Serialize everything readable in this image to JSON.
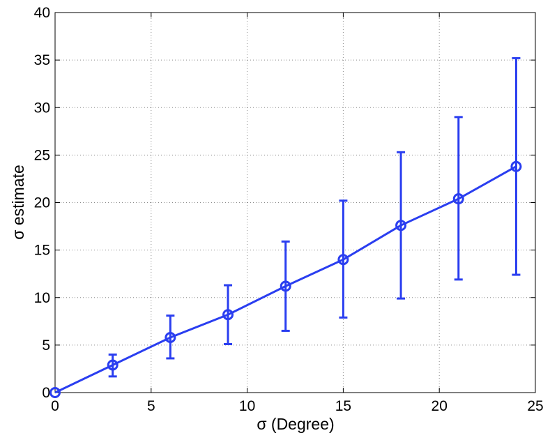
{
  "chart_data": {
    "type": "line",
    "title": "",
    "xlabel": "σ (Degree)",
    "ylabel": "σ estimate",
    "xlim": [
      0,
      25
    ],
    "ylim": [
      0,
      40
    ],
    "xticks": [
      0,
      5,
      10,
      15,
      20,
      25
    ],
    "yticks": [
      0,
      5,
      10,
      15,
      20,
      25,
      30,
      35,
      40
    ],
    "grid": true,
    "series_color": "#2a3ef0",
    "series": [
      {
        "x": [
          0,
          3,
          6,
          9,
          12,
          15,
          18,
          21,
          24
        ],
        "y": [
          0,
          2.9,
          5.8,
          8.2,
          11.2,
          14.0,
          17.6,
          20.4,
          23.8
        ],
        "err_low": [
          0,
          1.7,
          3.6,
          5.1,
          6.5,
          7.9,
          9.9,
          11.9,
          12.4
        ],
        "err_high": [
          0,
          4.0,
          8.1,
          11.3,
          15.9,
          20.2,
          25.3,
          29.0,
          35.2
        ]
      }
    ]
  }
}
